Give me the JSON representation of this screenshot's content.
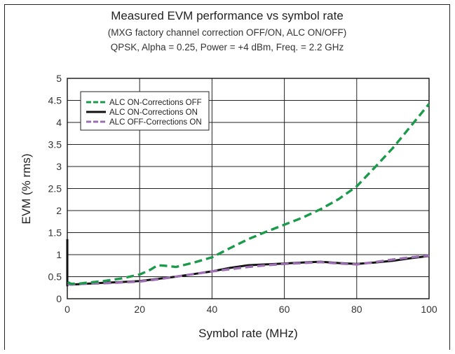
{
  "chart_data": {
    "type": "line",
    "title": "Measured  EVM performance vs symbol rate",
    "subtitle_lines": [
      "(MXG factory channel correction OFF/ON, ALC ON/OFF)",
      "QPSK, Alpha = 0.25, Power = +4 dBm, Freq. = 2.2 GHz"
    ],
    "xlabel": "Symbol rate (MHz)",
    "ylabel": "EVM (% rms)",
    "xlim": [
      0,
      100
    ],
    "ylim": [
      0,
      5
    ],
    "xticks": [
      0,
      20,
      40,
      60,
      80,
      100
    ],
    "yticks": [
      0,
      0.5,
      1,
      1.5,
      2,
      2.5,
      3,
      3.5,
      4,
      4.5,
      5
    ],
    "xtick_labels": [
      "0",
      "20",
      "40",
      "60",
      "80",
      "100"
    ],
    "ytick_labels": [
      "0",
      "0.5",
      "1",
      "1.5",
      "2",
      "2.5",
      "3",
      "3.5",
      "4",
      "4.5",
      "5"
    ],
    "grid": true,
    "legend_position": "top-left",
    "series": [
      {
        "name": "ALC ON-Corrections OFF",
        "color": "#1a9a4a",
        "style": "dashed",
        "x": [
          0.1,
          0.5,
          1,
          3,
          5,
          10,
          15,
          20,
          23,
          25,
          27,
          30,
          35,
          40,
          45,
          50,
          55,
          60,
          65,
          70,
          75,
          80,
          85,
          90,
          95,
          100
        ],
        "y": [
          0.38,
          0.36,
          0.34,
          0.34,
          0.36,
          0.4,
          0.46,
          0.55,
          0.66,
          0.76,
          0.75,
          0.72,
          0.82,
          0.94,
          1.15,
          1.35,
          1.52,
          1.68,
          1.84,
          2.03,
          2.26,
          2.55,
          2.98,
          3.42,
          3.92,
          4.42
        ]
      },
      {
        "name": "ALC ON-Corrections ON",
        "color": "#111111",
        "style": "solid",
        "x": [
          0,
          0,
          0.3,
          1,
          3,
          5,
          10,
          15,
          20,
          25,
          30,
          35,
          40,
          45,
          50,
          55,
          60,
          65,
          70,
          75,
          80,
          85,
          90,
          95,
          100
        ],
        "y": [
          1.35,
          0.3,
          0.33,
          0.32,
          0.33,
          0.34,
          0.36,
          0.38,
          0.4,
          0.45,
          0.5,
          0.56,
          0.62,
          0.7,
          0.76,
          0.78,
          0.8,
          0.82,
          0.84,
          0.81,
          0.79,
          0.82,
          0.86,
          0.92,
          0.97
        ]
      },
      {
        "name": "ALC OFF-Corrections ON",
        "color": "#9b6fb0",
        "style": "dashed",
        "x": [
          0.1,
          1,
          3,
          5,
          10,
          15,
          20,
          25,
          30,
          35,
          40,
          45,
          50,
          55,
          60,
          65,
          70,
          75,
          80,
          85,
          90,
          95,
          100
        ],
        "y": [
          0.33,
          0.32,
          0.33,
          0.34,
          0.35,
          0.37,
          0.39,
          0.44,
          0.5,
          0.56,
          0.62,
          0.67,
          0.72,
          0.76,
          0.79,
          0.81,
          0.83,
          0.8,
          0.78,
          0.83,
          0.89,
          0.94,
          0.98
        ]
      }
    ]
  }
}
